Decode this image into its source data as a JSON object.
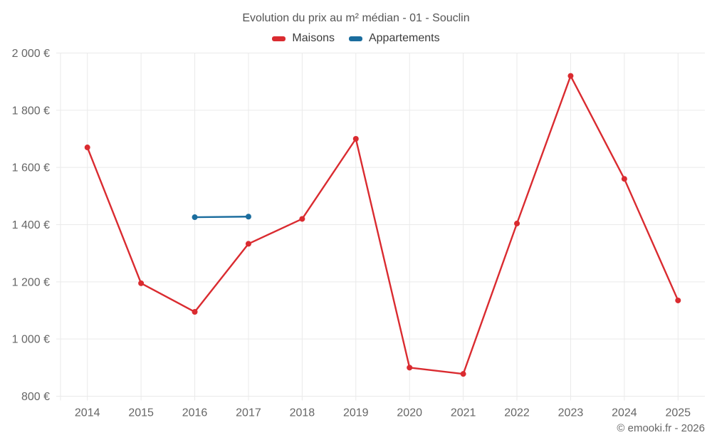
{
  "chart_data": {
    "type": "line",
    "title": "Evolution du prix au m² médian - 01 - Souclin",
    "xlabel": "",
    "ylabel": "",
    "grid": true,
    "legend_position": "top",
    "ylim": [
      800,
      2000
    ],
    "x_categories": [
      "2014",
      "2015",
      "2016",
      "2017",
      "2018",
      "2019",
      "2020",
      "2021",
      "2022",
      "2023",
      "2024",
      "2025"
    ],
    "y_ticks": [
      {
        "value": 800,
        "label": "800 €"
      },
      {
        "value": 1000,
        "label": "1 000 €"
      },
      {
        "value": 1200,
        "label": "1 200 €"
      },
      {
        "value": 1400,
        "label": "1 400 €"
      },
      {
        "value": 1600,
        "label": "1 600 €"
      },
      {
        "value": 1800,
        "label": "1 800 €"
      },
      {
        "value": 2000,
        "label": "2 000 €"
      }
    ],
    "series": [
      {
        "name": "Maisons",
        "color": "#da2b30",
        "data": [
          {
            "x": "2014",
            "y": 1670
          },
          {
            "x": "2015",
            "y": 1195
          },
          {
            "x": "2016",
            "y": 1095
          },
          {
            "x": "2017",
            "y": 1333
          },
          {
            "x": "2018",
            "y": 1420
          },
          {
            "x": "2019",
            "y": 1700
          },
          {
            "x": "2020",
            "y": 900
          },
          {
            "x": "2021",
            "y": 878
          },
          {
            "x": "2022",
            "y": 1404
          },
          {
            "x": "2023",
            "y": 1920
          },
          {
            "x": "2024",
            "y": 1560
          },
          {
            "x": "2025",
            "y": 1135
          }
        ]
      },
      {
        "name": "Appartements",
        "color": "#1b6d9e",
        "data": [
          {
            "x": "2016",
            "y": 1426
          },
          {
            "x": "2017",
            "y": 1428
          }
        ]
      }
    ],
    "colors": {
      "grid": "#eaeaea",
      "axis_text": "#666666",
      "title_text": "#555555",
      "legend_text": "#3c3c3c"
    }
  },
  "footer": {
    "copyright": "© emooki.fr - 2026"
  }
}
